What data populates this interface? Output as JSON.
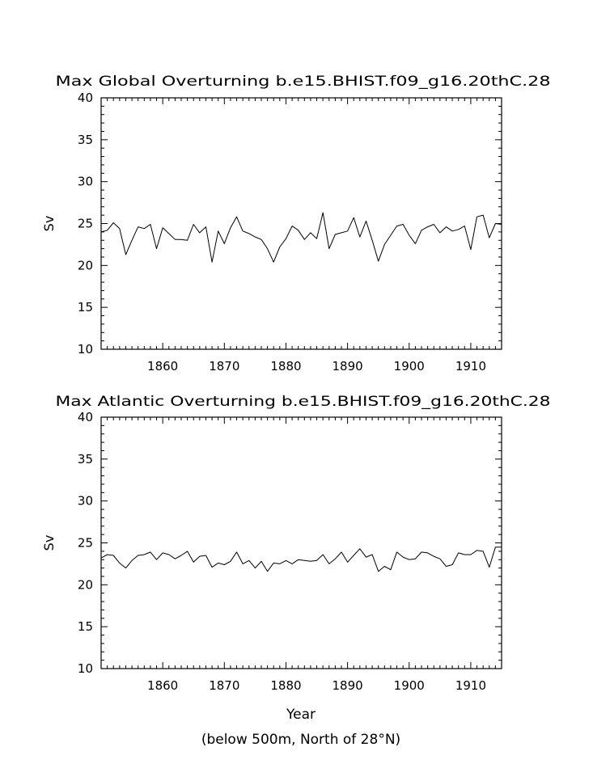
{
  "figure": {
    "footnote": "(below 500m, North of 28°N)",
    "xlabel": "Year"
  },
  "chart_data": [
    {
      "type": "line",
      "title": "Max Global Overturning b.e15.BHIST.f09_g16.20thC.28",
      "ylabel": "Sv",
      "xlabel": "",
      "xlim": [
        1850,
        1915
      ],
      "ylim": [
        10,
        40
      ],
      "xticks": [
        "1860",
        "1870",
        "1880",
        "1890",
        "1900",
        "1910"
      ],
      "yticks": [
        "10",
        "15",
        "20",
        "25",
        "30",
        "35",
        "40"
      ],
      "grid": false,
      "series": [
        {
          "x": [
            1850,
            1851,
            1852,
            1853,
            1854,
            1855,
            1856,
            1857,
            1858,
            1859,
            1860,
            1861,
            1862,
            1863,
            1864,
            1865,
            1866,
            1867,
            1868,
            1869,
            1870,
            1871,
            1872,
            1873,
            1874,
            1875,
            1876,
            1877,
            1878,
            1879,
            1880,
            1881,
            1882,
            1883,
            1884,
            1885,
            1886,
            1887,
            1888,
            1889,
            1890,
            1891,
            1892,
            1893,
            1894,
            1895,
            1896,
            1897,
            1898,
            1899,
            1900,
            1901,
            1902,
            1903,
            1904,
            1905,
            1906,
            1907,
            1908,
            1909,
            1910,
            1911,
            1912,
            1913,
            1914,
            1915
          ],
          "values": [
            24.0,
            24.2,
            25.1,
            24.4,
            21.3,
            23.0,
            24.6,
            24.4,
            24.9,
            22.0,
            24.5,
            23.8,
            23.1,
            23.1,
            23.0,
            24.9,
            23.9,
            24.6,
            20.4,
            24.1,
            22.6,
            24.5,
            25.8,
            24.1,
            23.8,
            23.4,
            23.1,
            22.0,
            20.4,
            22.2,
            23.2,
            24.7,
            24.2,
            23.1,
            23.9,
            23.2,
            26.3,
            22.0,
            23.7,
            23.9,
            24.1,
            25.7,
            23.4,
            25.3,
            23.0,
            20.5,
            22.5,
            23.6,
            24.7,
            24.9,
            23.6,
            22.6,
            24.2,
            24.6,
            24.9,
            23.9,
            24.6,
            24.1,
            24.3,
            24.7,
            21.9,
            25.8,
            26.0,
            23.3,
            25.0,
            24.9
          ]
        }
      ]
    },
    {
      "type": "line",
      "title": "Max Atlantic Overturning b.e15.BHIST.f09_g16.20thC.28",
      "ylabel": "Sv",
      "xlabel": "Year",
      "xlim": [
        1850,
        1915
      ],
      "ylim": [
        10,
        40
      ],
      "xticks": [
        "1860",
        "1870",
        "1880",
        "1890",
        "1900",
        "1910"
      ],
      "yticks": [
        "10",
        "15",
        "20",
        "25",
        "30",
        "35",
        "40"
      ],
      "grid": false,
      "series": [
        {
          "x": [
            1850,
            1851,
            1852,
            1853,
            1854,
            1855,
            1856,
            1857,
            1858,
            1859,
            1860,
            1861,
            1862,
            1863,
            1864,
            1865,
            1866,
            1867,
            1868,
            1869,
            1870,
            1871,
            1872,
            1873,
            1874,
            1875,
            1876,
            1877,
            1878,
            1879,
            1880,
            1881,
            1882,
            1883,
            1884,
            1885,
            1886,
            1887,
            1888,
            1889,
            1890,
            1891,
            1892,
            1893,
            1894,
            1895,
            1896,
            1897,
            1898,
            1899,
            1900,
            1901,
            1902,
            1903,
            1904,
            1905,
            1906,
            1907,
            1908,
            1909,
            1910,
            1911,
            1912,
            1913,
            1914,
            1915
          ],
          "values": [
            23.2,
            23.6,
            23.5,
            22.6,
            22.0,
            22.9,
            23.5,
            23.6,
            23.9,
            23.0,
            23.8,
            23.6,
            23.1,
            23.5,
            24.0,
            22.7,
            23.4,
            23.5,
            22.1,
            22.6,
            22.4,
            22.8,
            23.9,
            22.5,
            22.9,
            22.0,
            22.8,
            21.6,
            22.6,
            22.5,
            22.9,
            22.5,
            23.0,
            22.9,
            22.8,
            22.9,
            23.6,
            22.5,
            23.1,
            23.9,
            22.7,
            23.5,
            24.3,
            23.3,
            23.6,
            21.6,
            22.2,
            21.8,
            23.9,
            23.3,
            23.0,
            23.1,
            23.9,
            23.8,
            23.4,
            23.1,
            22.2,
            22.4,
            23.8,
            23.6,
            23.6,
            24.1,
            24.0,
            22.1,
            24.5,
            24.5
          ]
        }
      ]
    }
  ]
}
